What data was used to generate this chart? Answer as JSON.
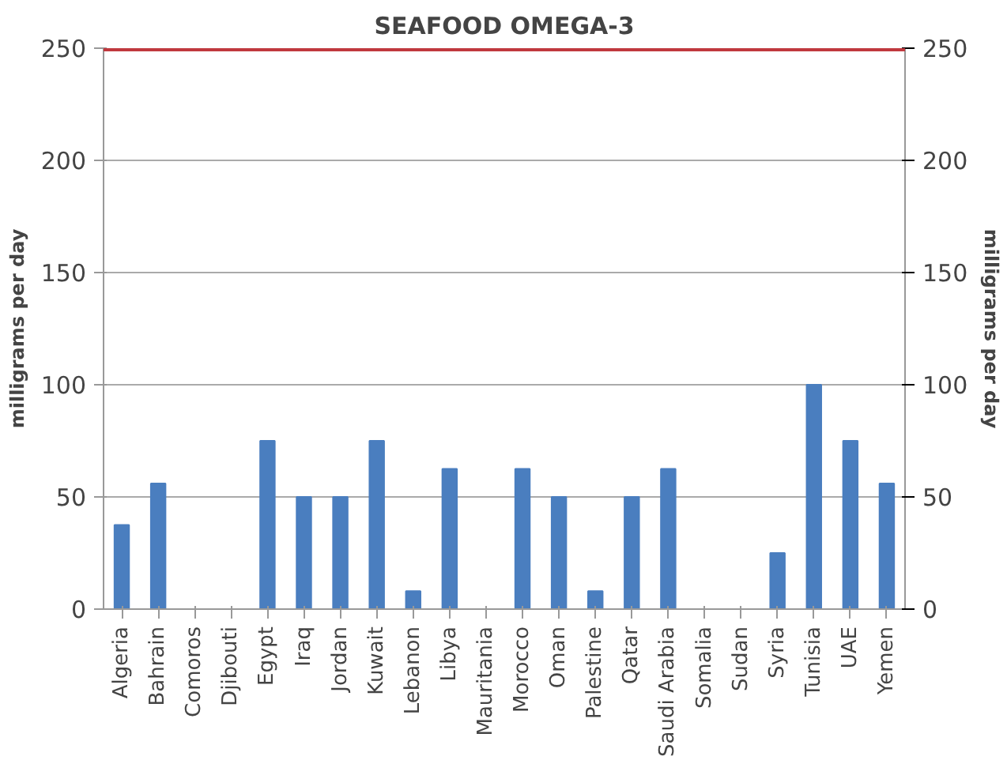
{
  "chart_data": {
    "type": "bar",
    "title": "SEAFOOD OMEGA-3",
    "ylabel": "milligrams per day",
    "y2label": "milligrams per day",
    "categories": [
      "Algeria",
      "Bahrain",
      "Comoros",
      "Djibouti",
      "Egypt",
      "Iraq",
      "Jordan",
      "Kuwait",
      "Lebanon",
      "Libya",
      "Mauritania",
      "Morocco",
      "Oman",
      "Palestine",
      "Qatar",
      "Saudi Arabia",
      "Somalia",
      "Sudan",
      "Syria",
      "Tunisia",
      "UAE",
      "Yemen"
    ],
    "values": [
      37.5,
      56,
      0,
      0,
      75,
      50,
      50,
      75,
      8,
      62.5,
      0,
      62.5,
      50,
      8,
      50,
      62.5,
      0,
      0,
      25,
      100,
      75,
      56
    ],
    "color": "#4a7ebf",
    "ylim": [
      0,
      250
    ],
    "yticks": [
      0,
      50,
      100,
      150,
      200,
      250
    ],
    "y2lim": [
      0,
      250
    ],
    "y2ticks": [
      0,
      50,
      100,
      150,
      200,
      250
    ],
    "ref_lines": [
      {
        "axis": "y",
        "value": 250,
        "label": null,
        "color": "#c0393f"
      }
    ],
    "grid": "y"
  }
}
